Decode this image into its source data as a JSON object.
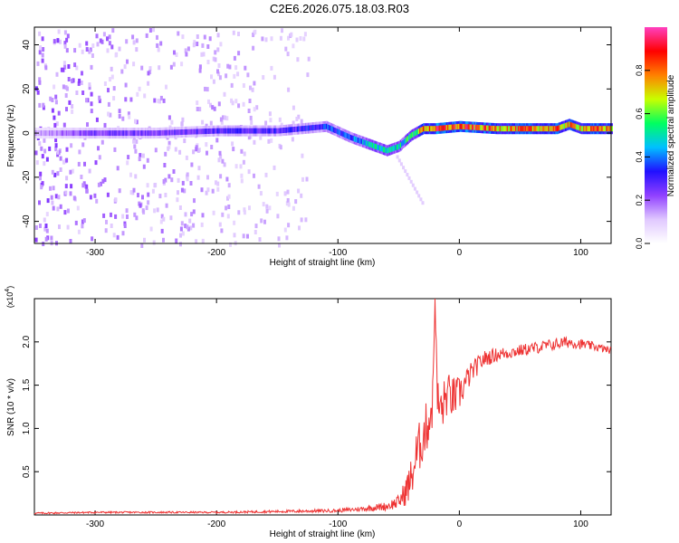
{
  "title": "C2E6.2026.075.18.03.R03",
  "colors": {
    "snr_line": "#ee3333",
    "axis": "#000000",
    "colormap": [
      "#ffffff",
      "#e0c8ff",
      "#9040ff",
      "#2010ff",
      "#00c0ff",
      "#00ff60",
      "#c8ff00",
      "#ff8000",
      "#ff0000",
      "#ff40c0"
    ]
  },
  "chart_data": [
    {
      "type": "heatmap",
      "xlabel": "Height of straight line (km)",
      "ylabel": "Frequency (Hz)",
      "xlim": [
        -350,
        125
      ],
      "ylim": [
        -50,
        48
      ],
      "xticks": [
        -300,
        -200,
        -100,
        0,
        100
      ],
      "yticks": [
        -40,
        -20,
        0,
        20,
        40
      ],
      "xtick_labels": [
        "-300",
        "-200",
        "-100",
        "0",
        "100"
      ],
      "ytick_labels": [
        "-40",
        "-20",
        "0",
        "20",
        "40"
      ],
      "colorbar": {
        "label": "Normalized spectral amplitude",
        "range": [
          0.0,
          1.0
        ],
        "ticks": [
          0.0,
          0.2,
          0.4,
          0.6,
          0.8
        ],
        "tick_labels": [
          "0.0",
          "0.2",
          "0.4",
          "0.6",
          "0.8"
        ]
      },
      "ridge": {
        "name": "dominant frequency track",
        "x": [
          -350,
          -300,
          -250,
          -200,
          -150,
          -110,
          -90,
          -70,
          -60,
          -50,
          -40,
          -30,
          -20,
          0,
          30,
          80,
          90,
          100,
          125
        ],
        "freq": [
          0,
          0,
          0,
          1,
          1,
          3,
          -2,
          -6,
          -8,
          -6,
          -1,
          2,
          2,
          3,
          2,
          2,
          4,
          2,
          2
        ],
        "amplitude": [
          0.15,
          0.25,
          0.25,
          0.3,
          0.3,
          0.35,
          0.4,
          0.5,
          0.55,
          0.5,
          0.55,
          0.8,
          0.85,
          0.85,
          0.8,
          0.8,
          0.75,
          0.8,
          0.8
        ]
      },
      "noise_extent_x": [
        -350,
        -125
      ]
    },
    {
      "type": "line",
      "xlabel": "Height of straight line (km)",
      "ylabel": "SNR (10 * v/v)",
      "y_multiplier": "(x10",
      "y_multiplier_exp": "4",
      "y_multiplier_close": ")",
      "xlim": [
        -350,
        125
      ],
      "ylim": [
        0,
        2.5
      ],
      "xticks": [
        -300,
        -200,
        -100,
        0,
        100
      ],
      "yticks": [
        0.5,
        1.0,
        1.5,
        2.0
      ],
      "xtick_labels": [
        "-300",
        "-200",
        "-100",
        "0",
        "100"
      ],
      "ytick_labels": [
        "0.5",
        "1.0",
        "1.5",
        "2.0"
      ],
      "series": [
        {
          "name": "SNR",
          "x": [
            -350,
            -300,
            -200,
            -150,
            -100,
            -80,
            -60,
            -50,
            -45,
            -40,
            -35,
            -30,
            -25,
            -22,
            -20,
            -18,
            -15,
            -10,
            -5,
            0,
            10,
            20,
            30,
            50,
            70,
            90,
            110,
            125
          ],
          "y": [
            0.02,
            0.03,
            0.03,
            0.04,
            0.05,
            0.07,
            0.1,
            0.15,
            0.25,
            0.4,
            0.7,
            0.9,
            1.1,
            1.3,
            2.5,
            1.3,
            1.2,
            1.4,
            1.35,
            1.4,
            1.65,
            1.8,
            1.85,
            1.9,
            1.95,
            2.0,
            1.95,
            1.9
          ],
          "noise": [
            0.01,
            0.01,
            0.01,
            0.015,
            0.02,
            0.03,
            0.05,
            0.08,
            0.15,
            0.25,
            0.3,
            0.3,
            0.3,
            0.3,
            0.0,
            0.3,
            0.3,
            0.25,
            0.25,
            0.2,
            0.12,
            0.1,
            0.08,
            0.07,
            0.07,
            0.07,
            0.05,
            0.04
          ]
        }
      ]
    }
  ]
}
